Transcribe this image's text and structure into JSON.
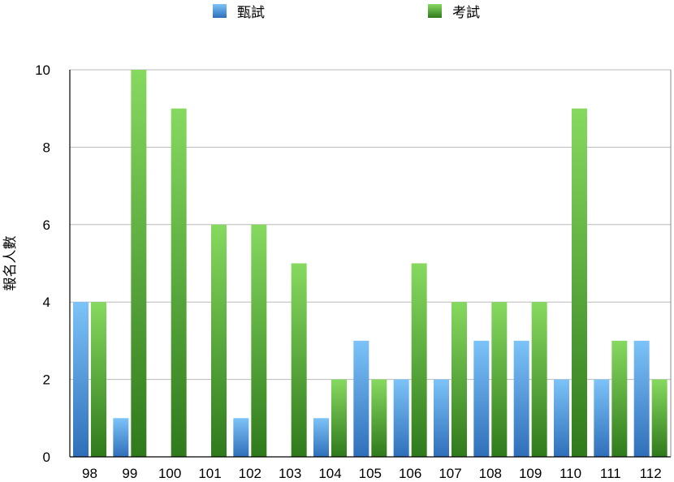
{
  "chart_data": {
    "type": "bar",
    "categories": [
      "98",
      "99",
      "100",
      "101",
      "102",
      "103",
      "104",
      "105",
      "106",
      "107",
      "108",
      "109",
      "110",
      "111",
      "112"
    ],
    "series": [
      {
        "name": "甄試",
        "values": [
          4,
          1,
          0,
          0,
          1,
          0,
          1,
          3,
          2,
          2,
          3,
          3,
          2,
          2,
          3
        ],
        "color_top": "#7cc3f8",
        "color_bottom": "#2f6fba"
      },
      {
        "name": "考試",
        "values": [
          4,
          10,
          9,
          6,
          6,
          5,
          2,
          2,
          5,
          4,
          4,
          4,
          9,
          3,
          2
        ],
        "color_top": "#86d95f",
        "color_bottom": "#2f7a1c"
      }
    ],
    "title": "",
    "xlabel": "",
    "ylabel": "報名人數",
    "ylim": [
      0,
      10
    ],
    "yticks": [
      "0",
      "2",
      "4",
      "6",
      "8",
      "10"
    ],
    "grid": true,
    "legend_position": "top"
  }
}
